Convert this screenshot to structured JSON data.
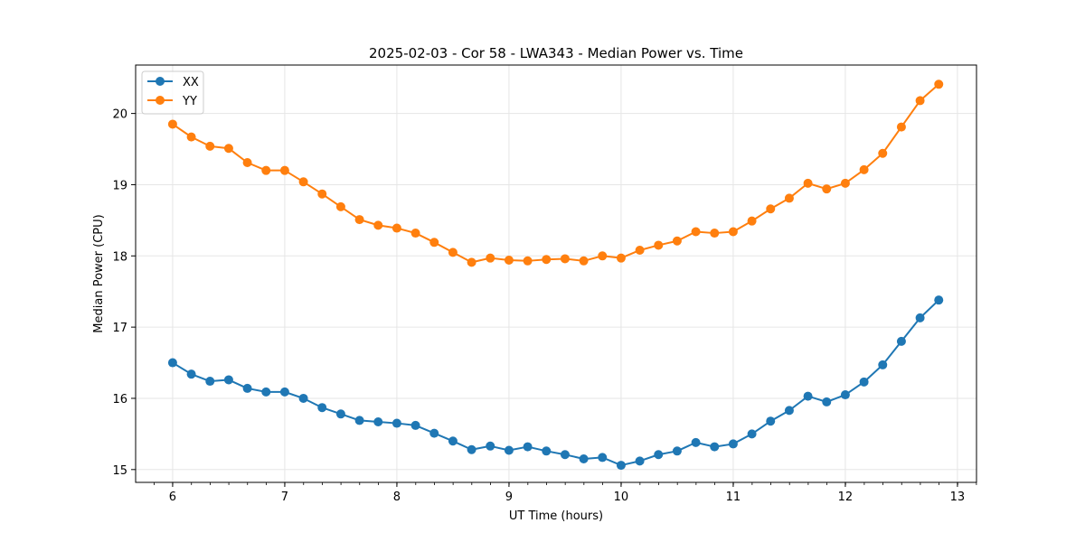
{
  "chart_data": {
    "type": "line",
    "title": "2025-02-03 - Cor 58 - LWA343 - Median Power vs. Time",
    "xlabel": "UT Time (hours)",
    "ylabel": "Median Power (CPU)",
    "xlim": [
      5.67,
      13.17
    ],
    "ylim": [
      14.82,
      20.68
    ],
    "xticks": [
      6,
      7,
      8,
      9,
      10,
      11,
      12,
      13
    ],
    "xtick_labels": [
      "6",
      "7",
      "8",
      "9",
      "10",
      "11",
      "12",
      "13"
    ],
    "xminor_step": 0.1667,
    "yticks": [
      15,
      16,
      17,
      18,
      19,
      20
    ],
    "ytick_labels": [
      "15",
      "16",
      "17",
      "18",
      "19",
      "20"
    ],
    "grid": true,
    "legend_position": "top-left",
    "x": [
      6.0,
      6.1667,
      6.3333,
      6.5,
      6.6667,
      6.8333,
      7.0,
      7.1667,
      7.3333,
      7.5,
      7.6667,
      7.8333,
      8.0,
      8.1667,
      8.3333,
      8.5,
      8.6667,
      8.8333,
      9.0,
      9.1667,
      9.3333,
      9.5,
      9.6667,
      9.8333,
      10.0,
      10.1667,
      10.3333,
      10.5,
      10.6667,
      10.8333,
      11.0,
      11.1667,
      11.3333,
      11.5,
      11.6667,
      11.8333,
      12.0,
      12.1667,
      12.3333,
      12.5,
      12.6667,
      12.8333
    ],
    "series": [
      {
        "name": "XX",
        "color": "#1f77b4",
        "values": [
          16.5,
          16.34,
          16.24,
          16.26,
          16.14,
          16.09,
          16.09,
          16.0,
          15.87,
          15.78,
          15.69,
          15.67,
          15.65,
          15.62,
          15.51,
          15.4,
          15.28,
          15.33,
          15.27,
          15.32,
          15.26,
          15.21,
          15.15,
          15.17,
          15.06,
          15.12,
          15.21,
          15.26,
          15.38,
          15.32,
          15.36,
          15.5,
          15.68,
          15.83,
          16.03,
          15.95,
          16.05,
          16.23,
          16.47,
          16.8,
          17.13,
          17.38
        ]
      },
      {
        "name": "YY",
        "color": "#ff7f0e",
        "values": [
          19.85,
          19.67,
          19.54,
          19.51,
          19.31,
          19.2,
          19.2,
          19.04,
          18.87,
          18.69,
          18.51,
          18.43,
          18.39,
          18.32,
          18.19,
          18.05,
          17.91,
          17.97,
          17.94,
          17.93,
          17.95,
          17.96,
          17.93,
          18.0,
          17.97,
          18.08,
          18.15,
          18.21,
          18.34,
          18.32,
          18.34,
          18.49,
          18.66,
          18.81,
          19.02,
          18.94,
          19.02,
          19.21,
          19.44,
          19.81,
          20.18,
          20.41
        ]
      }
    ]
  }
}
